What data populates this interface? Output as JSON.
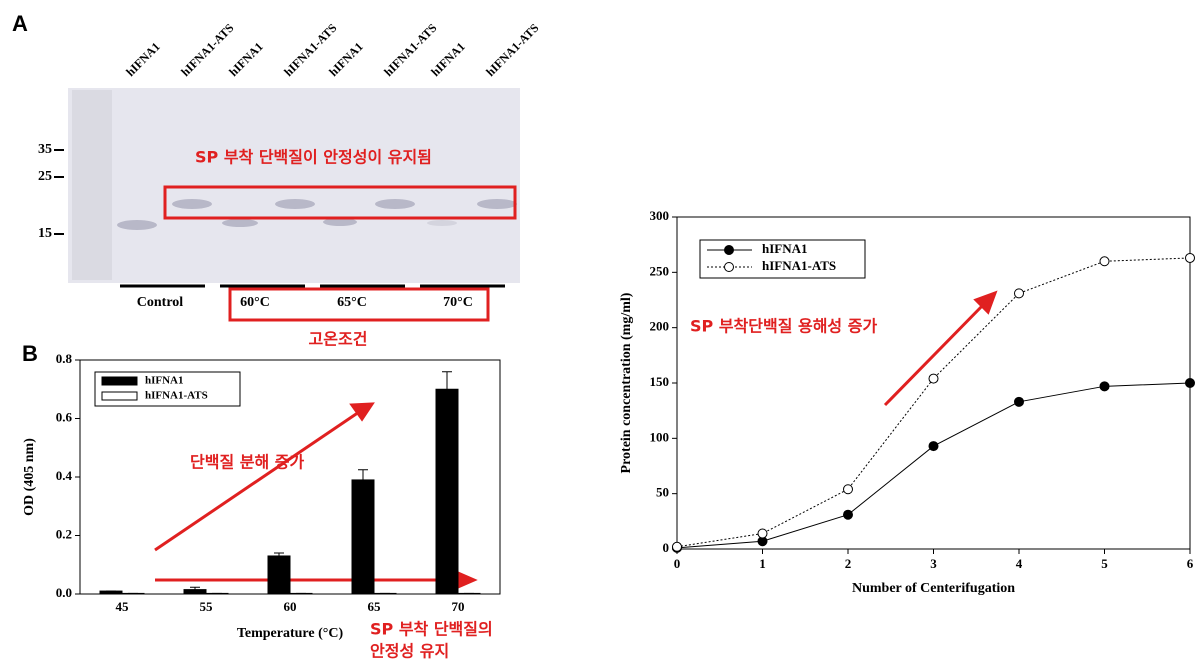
{
  "panel_a": {
    "label": "A",
    "lanes": [
      "hIFNA1",
      "hIFNA1-ATS",
      "hIFNA1",
      "hIFNA1-ATS",
      "hIFNA1",
      "hIFNA1-ATS",
      "hIFNA1",
      "hIFNA1-ATS"
    ],
    "markers": [
      "35",
      "25",
      "15"
    ],
    "groups": [
      "Control",
      "60°C",
      "65°C",
      "70°C"
    ],
    "annotation": "SP 부착 단백질이 안정성이 유지됨",
    "condition_label": "고온조건"
  },
  "panel_b": {
    "label": "B"
  },
  "chart_data": [
    {
      "type": "bar",
      "xlabel": "Temperature (°C)",
      "ylabel": "OD (405 nm)",
      "categories": [
        "45",
        "55",
        "60",
        "65",
        "70"
      ],
      "series": [
        {
          "name": "hIFNA1",
          "color": "#000000",
          "values": [
            0.01,
            0.015,
            0.13,
            0.39,
            0.7
          ],
          "errors": [
            0,
            0.008,
            0.01,
            0.035,
            0.06
          ]
        },
        {
          "name": "hIFNA1-ATS",
          "color": "#ffffff",
          "values": [
            0.002,
            0.002,
            0.002,
            0.002,
            0.002
          ],
          "errors": [
            0,
            0,
            0,
            0,
            0
          ]
        }
      ],
      "ylim": [
        0,
        0.8
      ],
      "yticks": [
        {
          "value": 0,
          "label": "0.0"
        },
        0.2,
        0.4,
        0.6,
        0.8
      ],
      "legend": "upper left",
      "annotations": [
        "단백질 분해 증가",
        "SP 부착 단백질의",
        "안정성 유지"
      ]
    },
    {
      "type": "line",
      "xlabel": "Number of Centerifugation",
      "ylabel": "Protein concentration (mg/ml)",
      "x": [
        0,
        1,
        2,
        3,
        4,
        5,
        6
      ],
      "series": [
        {
          "name": "hIFNA1",
          "color": "#000000",
          "line_style": "solid",
          "marker": "filled",
          "values": [
            1,
            7,
            31,
            93,
            133,
            147,
            150
          ]
        },
        {
          "name": "hIFNA1-ATS",
          "color": "#000000",
          "line_style": "dotted",
          "marker": "open",
          "values": [
            2,
            14,
            54,
            154,
            231,
            260,
            263
          ]
        }
      ],
      "xlim": [
        0,
        6
      ],
      "xticks": [
        0,
        1,
        2,
        3,
        4,
        5,
        6
      ],
      "ylim": [
        0,
        300
      ],
      "yticks": [
        0,
        50,
        100,
        150,
        200,
        250,
        300
      ],
      "legend": "upper left",
      "annotations": [
        "SP 부착단백질 용해성 증가"
      ]
    }
  ]
}
